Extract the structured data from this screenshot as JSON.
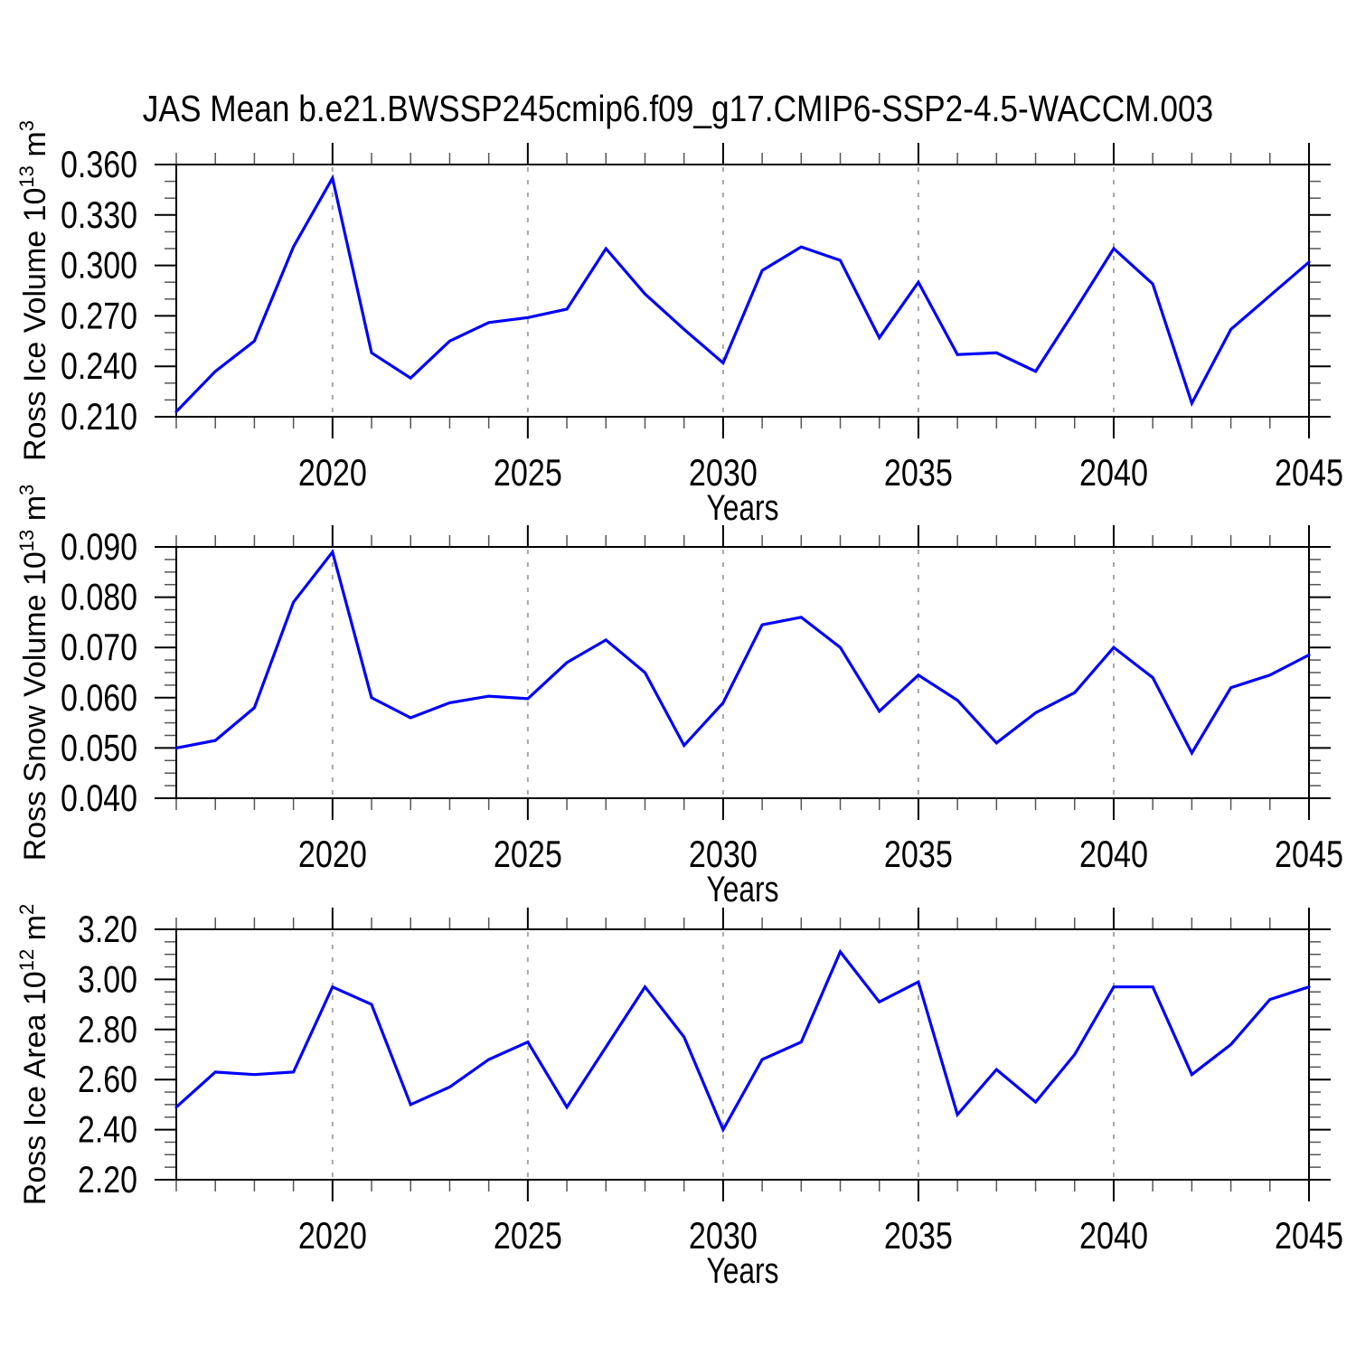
{
  "title": "JAS Mean b.e21.BWSSP245cmip6.f09_g17.CMIP6-SSP2-4.5-WACCM.003",
  "colors": {
    "line": "#0000ff",
    "grid": "#a8a8a8",
    "frame": "#000000",
    "minor_tick": "#555555",
    "background": "#ffffff",
    "text": "#000000"
  },
  "x_axis": {
    "label": "Years",
    "range": [
      2016,
      2045
    ],
    "major_ticks": [
      2020,
      2025,
      2030,
      2035,
      2040,
      2045
    ],
    "tick_labels": [
      "2020",
      "2025",
      "2030",
      "2035",
      "2040",
      "2045"
    ],
    "minor_step": 1,
    "gridline_years": [
      2020,
      2025,
      2030,
      2035,
      2040
    ]
  },
  "chart_data": [
    {
      "id": "ross-ice-volume",
      "type": "line",
      "ylabel": "Ross Ice Volume 10^13 m^3",
      "ylabel_parts": [
        {
          "text": "Ross Ice Volume 10"
        },
        {
          "text": "13",
          "sup": true
        },
        {
          "text": " m"
        },
        {
          "text": "3",
          "sup": true
        }
      ],
      "xlabel": "Years",
      "ylim": [
        0.21,
        0.36
      ],
      "yticks": [
        0.21,
        0.24,
        0.27,
        0.3,
        0.33,
        0.36
      ],
      "ytick_labels": [
        "0.210",
        "0.240",
        "0.270",
        "0.300",
        "0.330",
        "0.360"
      ],
      "y_minor_step": 0.01,
      "grid": "vertical-dashed",
      "legend": "none",
      "x": [
        2016,
        2017,
        2018,
        2019,
        2020,
        2021,
        2022,
        2023,
        2024,
        2025,
        2026,
        2027,
        2028,
        2029,
        2030,
        2031,
        2032,
        2033,
        2034,
        2035,
        2036,
        2037,
        2038,
        2039,
        2040,
        2041,
        2042,
        2043,
        2044,
        2045
      ],
      "values": [
        0.213,
        0.237,
        0.255,
        0.311,
        0.352,
        0.248,
        0.233,
        0.255,
        0.266,
        0.269,
        0.274,
        0.31,
        0.283,
        0.262,
        0.242,
        0.297,
        0.311,
        0.303,
        0.257,
        0.29,
        0.247,
        0.248,
        0.237,
        0.273,
        0.31,
        0.289,
        0.218,
        0.262,
        0.282,
        0.302
      ]
    },
    {
      "id": "ross-snow-volume",
      "type": "line",
      "ylabel": "Ross Snow Volume 10^13 m^3",
      "ylabel_parts": [
        {
          "text": "Ross Snow Volume 10"
        },
        {
          "text": "13",
          "sup": true
        },
        {
          "text": " m"
        },
        {
          "text": "3",
          "sup": true
        }
      ],
      "xlabel": "Years",
      "ylim": [
        0.04,
        0.09
      ],
      "yticks": [
        0.04,
        0.05,
        0.06,
        0.07,
        0.08,
        0.09
      ],
      "ytick_labels": [
        "0.040",
        "0.050",
        "0.060",
        "0.070",
        "0.080",
        "0.090"
      ],
      "y_minor_step": 0.0025,
      "grid": "vertical-dashed",
      "legend": "none",
      "x": [
        2016,
        2017,
        2018,
        2019,
        2020,
        2021,
        2022,
        2023,
        2024,
        2025,
        2026,
        2027,
        2028,
        2029,
        2030,
        2031,
        2032,
        2033,
        2034,
        2035,
        2036,
        2037,
        2038,
        2039,
        2040,
        2041,
        2042,
        2043,
        2044,
        2045
      ],
      "values": [
        0.05,
        0.0515,
        0.058,
        0.079,
        0.089,
        0.06,
        0.056,
        0.059,
        0.0603,
        0.0598,
        0.067,
        0.0715,
        0.065,
        0.0505,
        0.059,
        0.0745,
        0.076,
        0.07,
        0.0573,
        0.0645,
        0.0595,
        0.051,
        0.057,
        0.061,
        0.07,
        0.064,
        0.049,
        0.062,
        0.0645,
        0.0685
      ]
    },
    {
      "id": "ross-ice-area",
      "type": "line",
      "ylabel": "Ross Ice Area 10^12 m^2",
      "ylabel_parts": [
        {
          "text": "Ross Ice Area 10"
        },
        {
          "text": "12",
          "sup": true
        },
        {
          "text": " m"
        },
        {
          "text": "2",
          "sup": true
        }
      ],
      "xlabel": "Years",
      "ylim": [
        2.2,
        3.2
      ],
      "yticks": [
        2.2,
        2.4,
        2.6,
        2.8,
        3.0,
        3.2
      ],
      "ytick_labels": [
        "2.20",
        "2.40",
        "2.60",
        "2.80",
        "3.00",
        "3.20"
      ],
      "y_minor_step": 0.05,
      "grid": "vertical-dashed",
      "legend": "none",
      "x": [
        2016,
        2017,
        2018,
        2019,
        2020,
        2021,
        2022,
        2023,
        2024,
        2025,
        2026,
        2027,
        2028,
        2029,
        2030,
        2031,
        2032,
        2033,
        2034,
        2035,
        2036,
        2037,
        2038,
        2039,
        2040,
        2041,
        2042,
        2043,
        2044,
        2045
      ],
      "values": [
        2.49,
        2.63,
        2.62,
        2.63,
        2.97,
        2.9,
        2.5,
        2.57,
        2.68,
        2.75,
        2.49,
        2.73,
        2.97,
        2.77,
        2.4,
        2.68,
        2.75,
        3.11,
        2.91,
        2.99,
        2.46,
        2.64,
        2.51,
        2.7,
        2.97,
        2.97,
        2.62,
        2.74,
        2.92,
        2.97
      ]
    }
  ]
}
